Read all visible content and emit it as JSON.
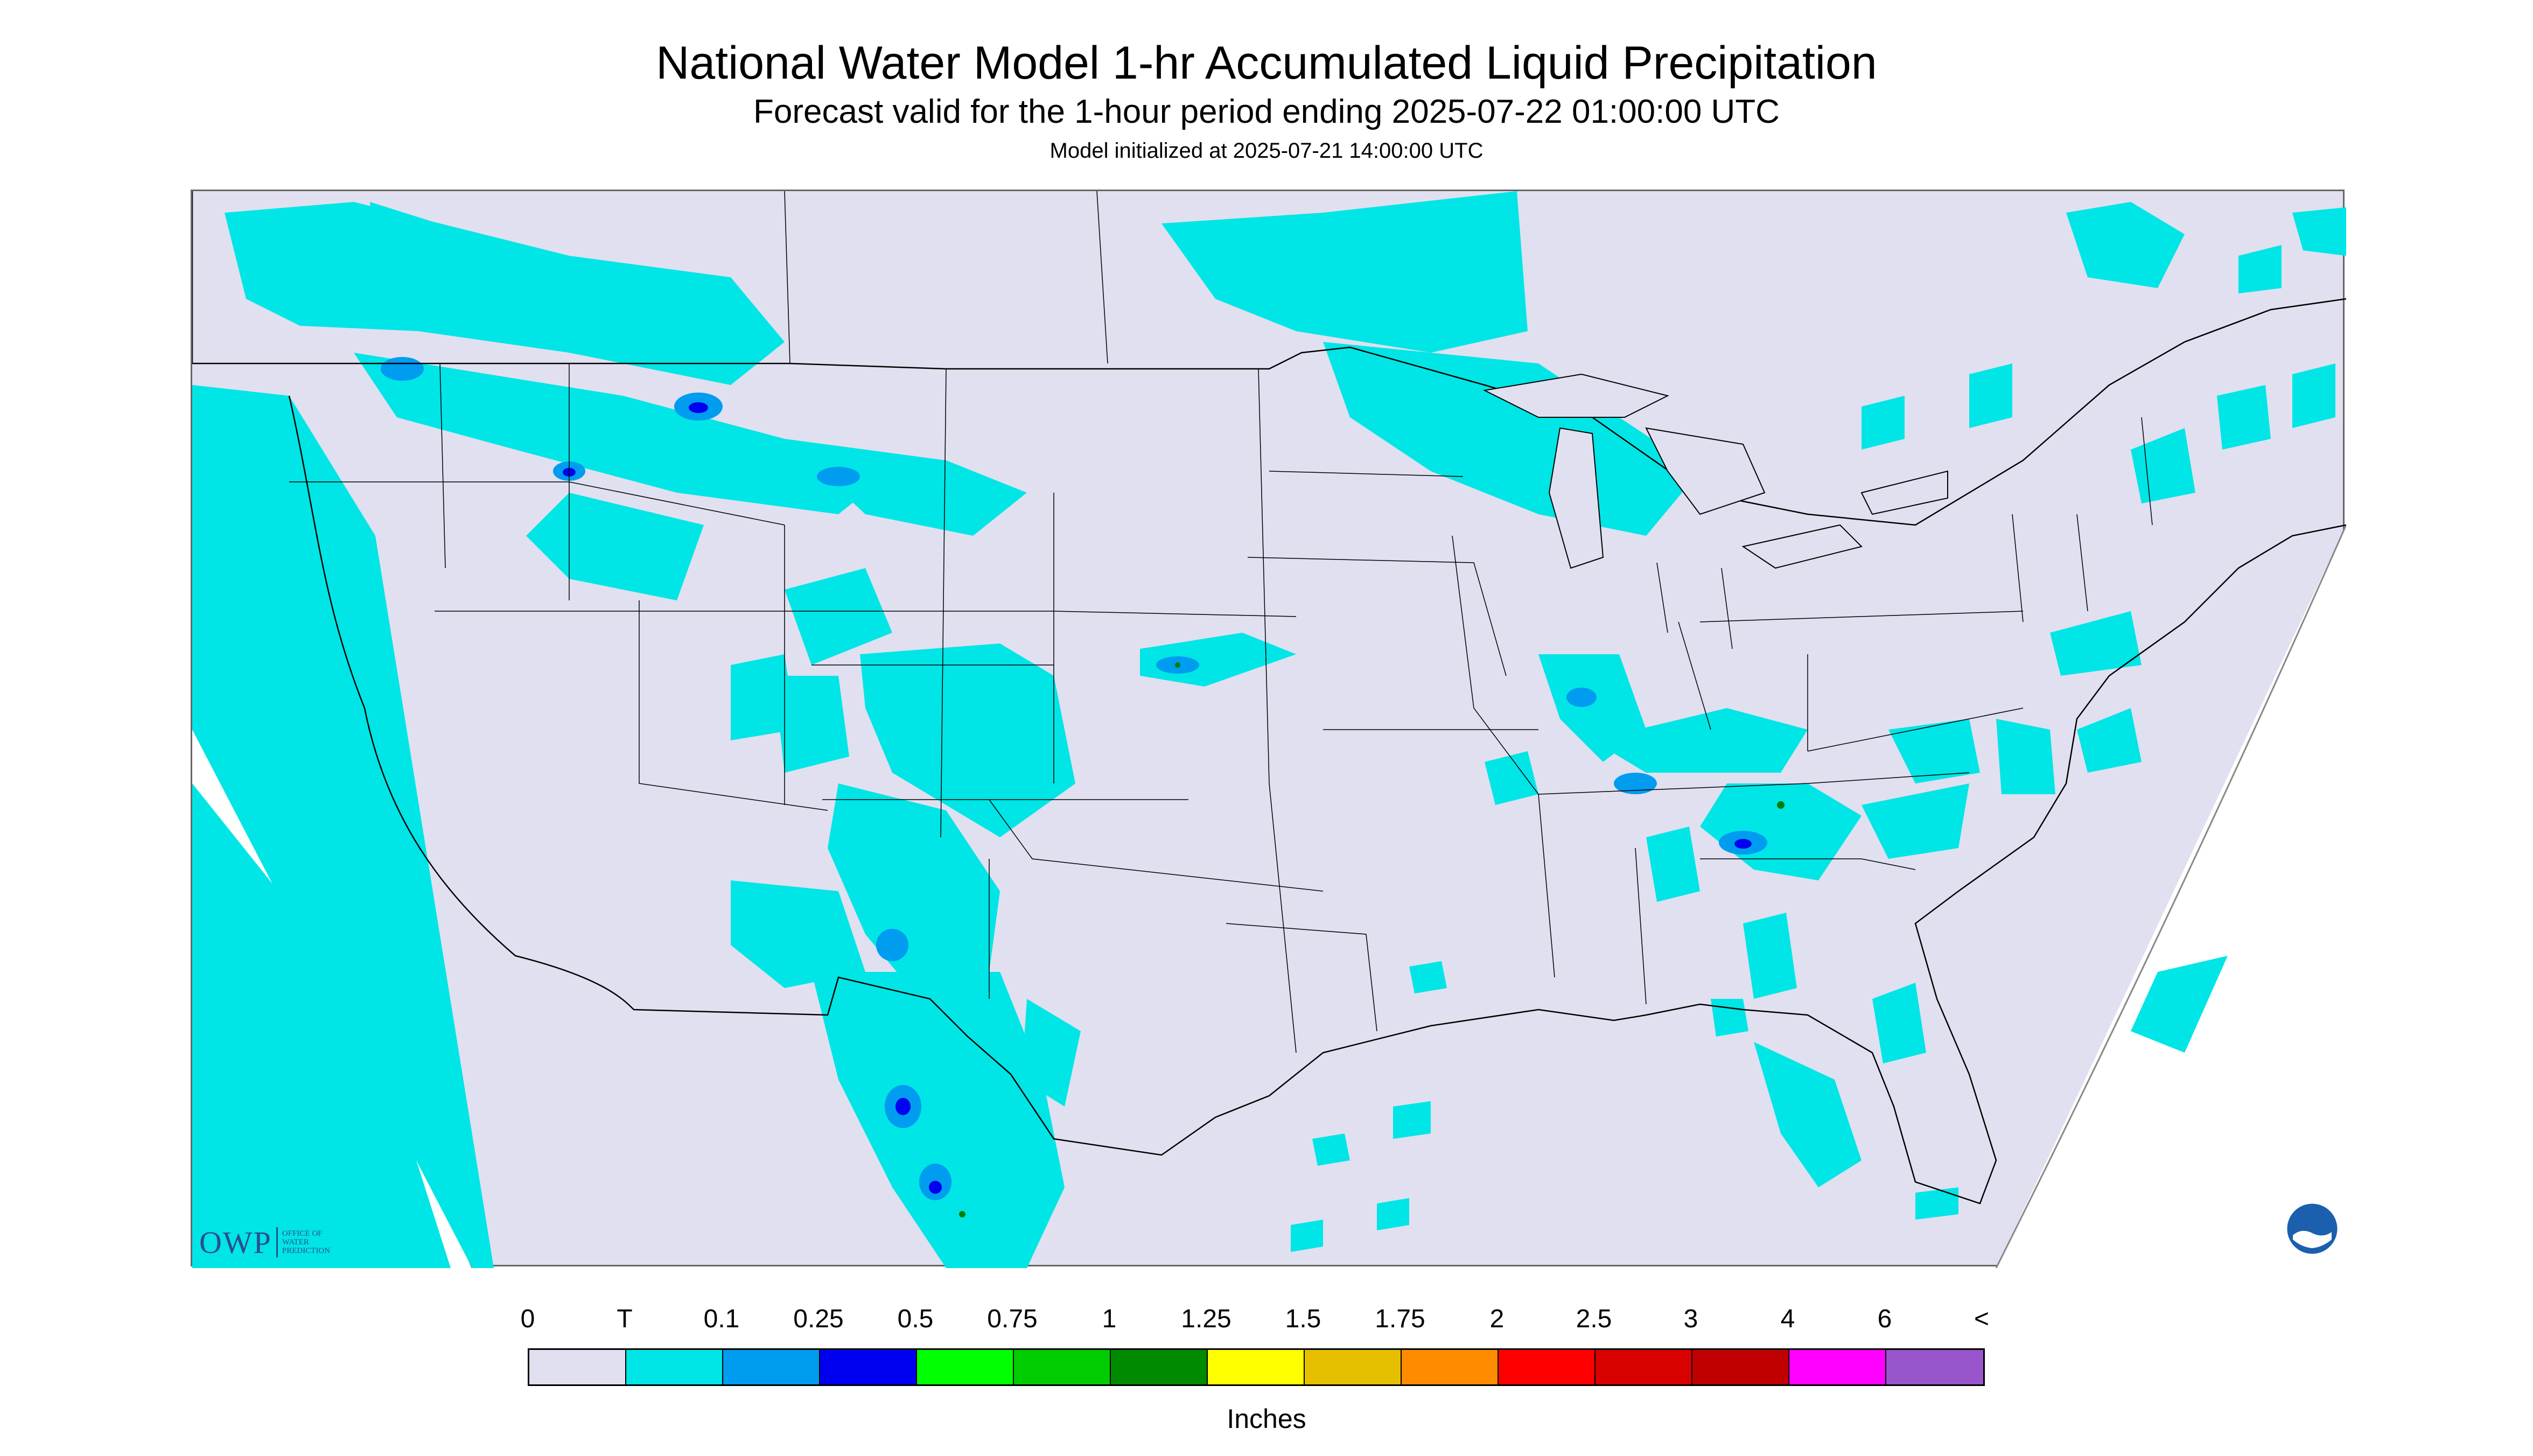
{
  "header": {
    "title": "National Water Model 1-hr Accumulated Liquid Precipitation",
    "subtitle": "Forecast valid for the 1-hour period ending 2025-07-22 01:00:00 UTC",
    "init_line": "Model initialized at 2025-07-21 14:00:00 UTC"
  },
  "map": {
    "region": "Continental United States",
    "background_color": "#e0e0f0",
    "precip_light_color": "#00e5e5",
    "precip_medium_color": "#009cf0",
    "precip_heavy_color": "#0000f0",
    "precip_extreme_color": "#008000",
    "outline_color": "#000000"
  },
  "logos": {
    "owp_mark": "OWP",
    "owp_text": "OFFICE OF WATER PREDICTION",
    "noaa_icon": "noaa-logo-icon"
  },
  "legend": {
    "units": "Inches",
    "labels": [
      "0",
      "T",
      "0.1",
      "0.25",
      "0.5",
      "0.75",
      "1",
      "1.25",
      "1.5",
      "1.75",
      "2",
      "2.5",
      "3",
      "4",
      "6",
      "<"
    ],
    "colors": [
      "#e0e0f0",
      "#00e5e5",
      "#009cf0",
      "#0000f0",
      "#00ff00",
      "#00cc00",
      "#008a00",
      "#ffff00",
      "#e6c000",
      "#ff8c00",
      "#ff0000",
      "#d90000",
      "#c00000",
      "#ff00ff",
      "#9955cc"
    ]
  }
}
